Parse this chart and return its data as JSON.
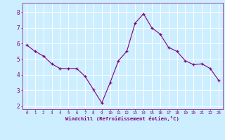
{
  "x": [
    0,
    1,
    2,
    3,
    4,
    5,
    6,
    7,
    8,
    9,
    10,
    11,
    12,
    13,
    14,
    15,
    16,
    17,
    18,
    19,
    20,
    21,
    22,
    23
  ],
  "y": [
    5.9,
    5.5,
    5.2,
    4.7,
    4.4,
    4.4,
    4.4,
    3.9,
    3.05,
    2.2,
    3.5,
    4.9,
    5.5,
    7.3,
    7.9,
    7.0,
    6.6,
    5.75,
    5.5,
    4.9,
    4.65,
    4.7,
    4.4,
    3.65
  ],
  "line_color": "#800080",
  "marker_color": "#800080",
  "bg_color": "#cceeff",
  "grid_color": "#ffffff",
  "xlabel": "Windchill (Refroidissement éolien,°C)",
  "xlabel_color": "#800080",
  "tick_color": "#800080",
  "ylim": [
    1.8,
    8.6
  ],
  "xlim": [
    -0.5,
    23.5
  ],
  "yticks": [
    2,
    3,
    4,
    5,
    6,
    7,
    8
  ],
  "xticks": [
    0,
    1,
    2,
    3,
    4,
    5,
    6,
    7,
    8,
    9,
    10,
    11,
    12,
    13,
    14,
    15,
    16,
    17,
    18,
    19,
    20,
    21,
    22,
    23
  ]
}
